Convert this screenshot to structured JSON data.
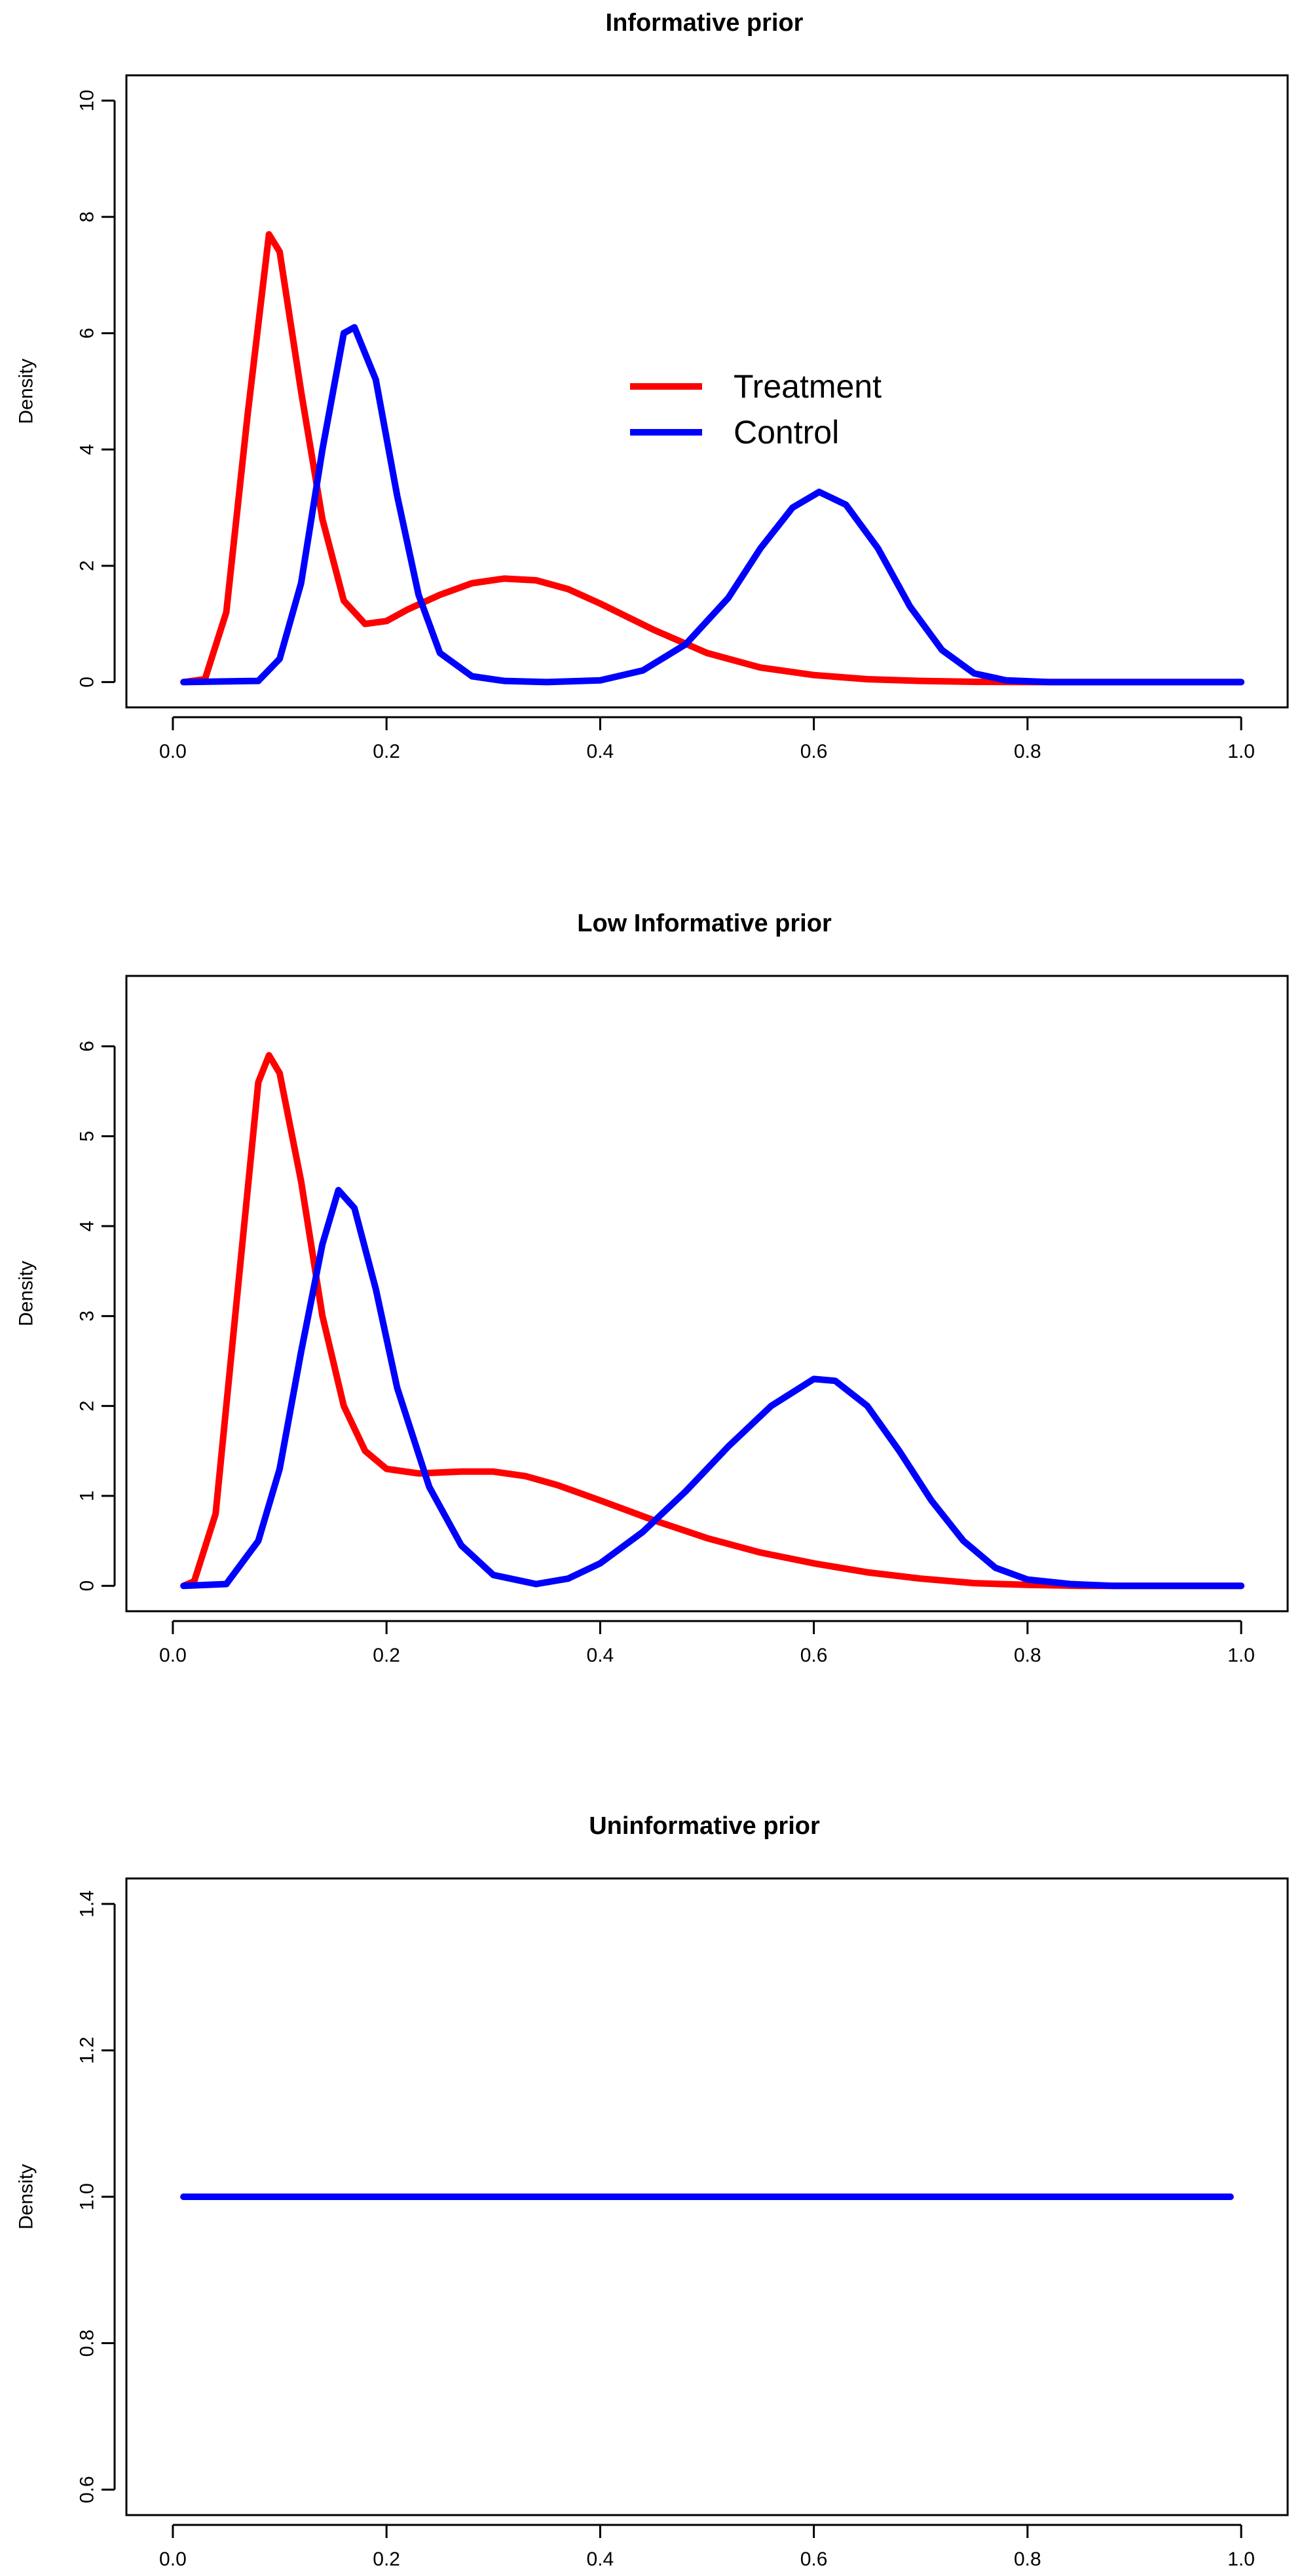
{
  "chart_data": [
    {
      "type": "line",
      "title": "Informative prior",
      "xlabel": "",
      "ylabel": "Density",
      "xlim": [
        0,
        1
      ],
      "ylim": [
        0,
        10
      ],
      "xticks": [
        "0.0",
        "0.2",
        "0.4",
        "0.6",
        "0.8",
        "1.0"
      ],
      "yticks": [
        "0",
        "2",
        "4",
        "6",
        "8",
        "10"
      ],
      "legend": {
        "position": "top-center",
        "entries": [
          "Treatment",
          "Control"
        ]
      },
      "series": [
        {
          "name": "Treatment",
          "color": "#ff0000",
          "points": [
            [
              0.01,
              0
            ],
            [
              0.03,
              0.05
            ],
            [
              0.05,
              1.2
            ],
            [
              0.07,
              4.6
            ],
            [
              0.09,
              7.7
            ],
            [
              0.1,
              7.4
            ],
            [
              0.12,
              5.0
            ],
            [
              0.14,
              2.8
            ],
            [
              0.16,
              1.4
            ],
            [
              0.18,
              1.0
            ],
            [
              0.2,
              1.05
            ],
            [
              0.22,
              1.25
            ],
            [
              0.25,
              1.5
            ],
            [
              0.28,
              1.7
            ],
            [
              0.31,
              1.78
            ],
            [
              0.34,
              1.75
            ],
            [
              0.37,
              1.6
            ],
            [
              0.4,
              1.35
            ],
            [
              0.45,
              0.9
            ],
            [
              0.5,
              0.5
            ],
            [
              0.55,
              0.25
            ],
            [
              0.6,
              0.12
            ],
            [
              0.65,
              0.05
            ],
            [
              0.7,
              0.02
            ],
            [
              0.75,
              0.005
            ],
            [
              0.8,
              0
            ],
            [
              1.0,
              0
            ]
          ]
        },
        {
          "name": "Control",
          "color": "#0000ff",
          "points": [
            [
              0.01,
              0
            ],
            [
              0.08,
              0.02
            ],
            [
              0.1,
              0.4
            ],
            [
              0.12,
              1.7
            ],
            [
              0.14,
              4.0
            ],
            [
              0.16,
              6.0
            ],
            [
              0.17,
              6.1
            ],
            [
              0.19,
              5.2
            ],
            [
              0.21,
              3.2
            ],
            [
              0.23,
              1.5
            ],
            [
              0.25,
              0.5
            ],
            [
              0.28,
              0.1
            ],
            [
              0.31,
              0.02
            ],
            [
              0.35,
              0
            ],
            [
              0.4,
              0.03
            ],
            [
              0.44,
              0.2
            ],
            [
              0.48,
              0.65
            ],
            [
              0.52,
              1.45
            ],
            [
              0.55,
              2.3
            ],
            [
              0.58,
              3.0
            ],
            [
              0.605,
              3.27
            ],
            [
              0.63,
              3.05
            ],
            [
              0.66,
              2.3
            ],
            [
              0.69,
              1.3
            ],
            [
              0.72,
              0.55
            ],
            [
              0.75,
              0.15
            ],
            [
              0.78,
              0.03
            ],
            [
              0.82,
              0
            ],
            [
              1.0,
              0
            ]
          ]
        }
      ]
    },
    {
      "type": "line",
      "title": "Low Informative prior",
      "xlabel": "",
      "ylabel": "Density",
      "xlim": [
        0,
        1
      ],
      "ylim": [
        0,
        6.5
      ],
      "xticks": [
        "0.0",
        "0.2",
        "0.4",
        "0.6",
        "0.8",
        "1.0"
      ],
      "yticks": [
        "0",
        "1",
        "2",
        "3",
        "4",
        "5",
        "6"
      ],
      "series": [
        {
          "name": "Treatment",
          "color": "#ff0000",
          "points": [
            [
              0.01,
              0
            ],
            [
              0.02,
              0.05
            ],
            [
              0.04,
              0.8
            ],
            [
              0.06,
              3.2
            ],
            [
              0.08,
              5.6
            ],
            [
              0.09,
              5.9
            ],
            [
              0.1,
              5.7
            ],
            [
              0.12,
              4.5
            ],
            [
              0.14,
              3.0
            ],
            [
              0.16,
              2.0
            ],
            [
              0.18,
              1.5
            ],
            [
              0.2,
              1.3
            ],
            [
              0.23,
              1.25
            ],
            [
              0.27,
              1.27
            ],
            [
              0.3,
              1.27
            ],
            [
              0.33,
              1.22
            ],
            [
              0.36,
              1.12
            ],
            [
              0.4,
              0.95
            ],
            [
              0.45,
              0.73
            ],
            [
              0.5,
              0.53
            ],
            [
              0.55,
              0.37
            ],
            [
              0.6,
              0.25
            ],
            [
              0.65,
              0.15
            ],
            [
              0.7,
              0.08
            ],
            [
              0.75,
              0.03
            ],
            [
              0.8,
              0.01
            ],
            [
              0.85,
              0
            ],
            [
              1.0,
              0
            ]
          ]
        },
        {
          "name": "Control",
          "color": "#0000ff",
          "points": [
            [
              0.01,
              0
            ],
            [
              0.05,
              0.02
            ],
            [
              0.08,
              0.5
            ],
            [
              0.1,
              1.3
            ],
            [
              0.12,
              2.6
            ],
            [
              0.14,
              3.8
            ],
            [
              0.155,
              4.4
            ],
            [
              0.17,
              4.2
            ],
            [
              0.19,
              3.3
            ],
            [
              0.21,
              2.2
            ],
            [
              0.24,
              1.1
            ],
            [
              0.27,
              0.45
            ],
            [
              0.3,
              0.12
            ],
            [
              0.34,
              0.02
            ],
            [
              0.37,
              0.08
            ],
            [
              0.4,
              0.25
            ],
            [
              0.44,
              0.6
            ],
            [
              0.48,
              1.05
            ],
            [
              0.52,
              1.55
            ],
            [
              0.56,
              2.0
            ],
            [
              0.6,
              2.3
            ],
            [
              0.62,
              2.28
            ],
            [
              0.65,
              2.0
            ],
            [
              0.68,
              1.5
            ],
            [
              0.71,
              0.95
            ],
            [
              0.74,
              0.5
            ],
            [
              0.77,
              0.2
            ],
            [
              0.8,
              0.07
            ],
            [
              0.84,
              0.02
            ],
            [
              0.88,
              0
            ],
            [
              1.0,
              0
            ]
          ]
        }
      ]
    },
    {
      "type": "line",
      "title": "Uninformative prior",
      "xlabel": "",
      "ylabel": "Density",
      "xlim": [
        0,
        1
      ],
      "ylim": [
        0.6,
        1.4
      ],
      "xticks": [
        "0.0",
        "0.2",
        "0.4",
        "0.6",
        "0.8",
        "1.0"
      ],
      "yticks": [
        "0.6",
        "0.8",
        "1.0",
        "1.2",
        "1.4"
      ],
      "series": [
        {
          "name": "Treatment",
          "color": "#ff0000",
          "points": [
            [
              0.01,
              1.0
            ],
            [
              0.99,
              1.0
            ]
          ]
        },
        {
          "name": "Control",
          "color": "#0000ff",
          "points": [
            [
              0.01,
              1.0
            ],
            [
              0.99,
              1.0
            ]
          ]
        }
      ]
    }
  ]
}
